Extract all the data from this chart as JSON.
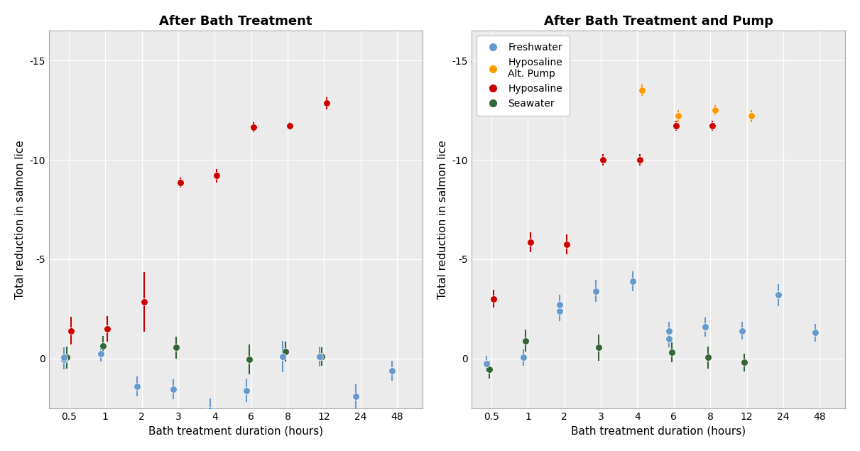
{
  "title_left": "After Bath Treatment",
  "title_right": "After Bath Treatment and Pump",
  "xlabel": "Bath treatment duration (hours)",
  "ylabel": "Total reduction in salmon lice",
  "background_color": "#EBEBEB",
  "ylim": [
    2.5,
    -16.5
  ],
  "yticks": [
    0,
    -5,
    -10,
    -15
  ],
  "colors": {
    "freshwater": "#6699CC",
    "hyposaline_alt": "#FF9900",
    "hyposaline": "#CC0000",
    "seawater": "#336633"
  },
  "x_hours": [
    0.5,
    1,
    2,
    3,
    4,
    6,
    8,
    12,
    24,
    48
  ],
  "x_tick_labels": [
    "0.5",
    "1",
    "2",
    "3",
    "4",
    "6",
    "8",
    "12",
    "24",
    "48"
  ],
  "left_panel": {
    "freshwater": {
      "x": [
        0.25,
        0.5,
        1,
        2,
        3,
        4,
        6,
        8,
        12,
        24,
        48
      ],
      "y": [
        -0.05,
        0.05,
        0.25,
        -1.4,
        -1.55,
        -2.6,
        -1.6,
        0.1,
        0.1,
        -1.9,
        -0.6
      ],
      "yerr": [
        0.5,
        0.5,
        0.4,
        0.5,
        0.5,
        0.6,
        0.6,
        0.8,
        0.5,
        0.6,
        0.5
      ]
    },
    "hyposaline": {
      "x": [
        0.5,
        1,
        2,
        3,
        4,
        6,
        8,
        12
      ],
      "y": [
        1.4,
        1.5,
        2.85,
        8.85,
        9.2,
        11.65,
        11.7,
        12.85
      ],
      "yerr": [
        0.7,
        0.65,
        1.5,
        0.25,
        0.35,
        0.25,
        0.2,
        0.3
      ]
    },
    "seawater": {
      "x": [
        0.5,
        1,
        3,
        6,
        8,
        12
      ],
      "y": [
        0.05,
        0.65,
        0.55,
        -0.05,
        0.35,
        0.1
      ],
      "yerr": [
        0.55,
        0.5,
        0.55,
        0.75,
        0.5,
        0.45
      ]
    }
  },
  "right_panel": {
    "freshwater": {
      "x": [
        0.5,
        1,
        2,
        2,
        3,
        4,
        6,
        6,
        8,
        8,
        12,
        24,
        48
      ],
      "y": [
        -0.25,
        0.05,
        2.4,
        2.7,
        3.4,
        3.9,
        1.0,
        1.4,
        1.55,
        1.6,
        1.4,
        3.2,
        1.3
      ],
      "yerr": [
        0.4,
        0.4,
        0.5,
        0.5,
        0.55,
        0.5,
        0.45,
        0.45,
        0.45,
        0.45,
        0.45,
        0.55,
        0.45
      ]
    },
    "hyposaline_alt": {
      "x": [
        4,
        6,
        8,
        12
      ],
      "y": [
        13.5,
        12.2,
        12.5,
        12.2
      ],
      "yerr": [
        0.3,
        0.3,
        0.25,
        0.3
      ]
    },
    "hyposaline": {
      "x": [
        0.5,
        1,
        2,
        3,
        4,
        6,
        8
      ],
      "y": [
        3.0,
        5.85,
        5.75,
        10.0,
        10.0,
        11.7,
        11.7
      ],
      "yerr": [
        0.45,
        0.5,
        0.5,
        0.3,
        0.3,
        0.25,
        0.25
      ]
    },
    "seawater": {
      "x": [
        0.5,
        1,
        3,
        6,
        8,
        12
      ],
      "y": [
        -0.55,
        0.9,
        0.55,
        0.3,
        0.05,
        -0.2
      ],
      "yerr": [
        0.45,
        0.55,
        0.65,
        0.5,
        0.55,
        0.45
      ]
    }
  }
}
